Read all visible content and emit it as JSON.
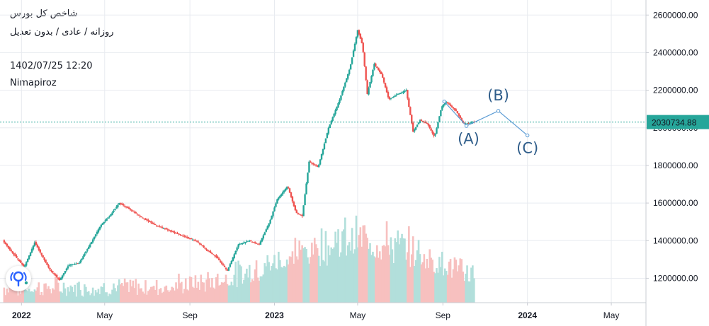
{
  "header": {
    "title": "شاخص کل بورس",
    "subtitle": "روزانه / عادی / بدون تعدیل",
    "datetime": "1402/07/25 12:20",
    "author": "Nimapiroz"
  },
  "colors": {
    "up": "#26a69a",
    "down": "#ef5350",
    "volume_up": "#b2dfdb",
    "volume_down": "#f7c0bf",
    "price_line": "#26a69a",
    "wave": "#2f5d8a",
    "grid": "#e8ebf0"
  },
  "logo": {
    "icon": "tradingview-logo-icon"
  },
  "chart_data": {
    "type": "candlestick",
    "y_ticks": [
      "2600000.00",
      "2400000.00",
      "2200000.00",
      "2000000.00",
      "1800000.00",
      "1600000.00",
      "1400000.00",
      "1200000.00"
    ],
    "y_tick_values": [
      2600000,
      2400000,
      2200000,
      2000000,
      1800000,
      1600000,
      1400000,
      1200000
    ],
    "x_ticks": [
      {
        "label": "2022",
        "bold": true,
        "date": "2022-01-01"
      },
      {
        "label": "May",
        "bold": false,
        "date": "2022-05-01"
      },
      {
        "label": "Sep",
        "bold": false,
        "date": "2022-09-01"
      },
      {
        "label": "2023",
        "bold": true,
        "date": "2023-01-01"
      },
      {
        "label": "May",
        "bold": false,
        "date": "2023-05-01"
      },
      {
        "label": "Sep",
        "bold": false,
        "date": "2023-09-01"
      },
      {
        "label": "2024",
        "bold": true,
        "date": "2024-01-01"
      },
      {
        "label": "May",
        "bold": false,
        "date": "2024-05-01"
      }
    ],
    "ylim": [
      1070000,
      2680000
    ],
    "xlim": [
      "2021-12-01",
      "2024-06-20"
    ],
    "grid": true,
    "current_price": {
      "label": "2030734.88",
      "value": 2030734.88
    },
    "price_path": [
      [
        "2021-12-05",
        1400000
      ],
      [
        "2021-12-20",
        1330000
      ],
      [
        "2022-01-05",
        1260000
      ],
      [
        "2022-01-20",
        1390000
      ],
      [
        "2022-02-10",
        1250000
      ],
      [
        "2022-02-25",
        1190000
      ],
      [
        "2022-03-10",
        1270000
      ],
      [
        "2022-03-25",
        1280000
      ],
      [
        "2022-04-10",
        1380000
      ],
      [
        "2022-04-25",
        1480000
      ],
      [
        "2022-05-10",
        1540000
      ],
      [
        "2022-05-22",
        1600000
      ],
      [
        "2022-06-05",
        1570000
      ],
      [
        "2022-06-25",
        1520000
      ],
      [
        "2022-07-15",
        1480000
      ],
      [
        "2022-08-05",
        1450000
      ],
      [
        "2022-08-25",
        1420000
      ],
      [
        "2022-09-10",
        1400000
      ],
      [
        "2022-09-25",
        1350000
      ],
      [
        "2022-10-10",
        1310000
      ],
      [
        "2022-10-25",
        1240000
      ],
      [
        "2022-11-10",
        1380000
      ],
      [
        "2022-11-25",
        1400000
      ],
      [
        "2022-12-10",
        1380000
      ],
      [
        "2022-12-25",
        1500000
      ],
      [
        "2023-01-05",
        1620000
      ],
      [
        "2023-01-20",
        1690000
      ],
      [
        "2023-02-01",
        1550000
      ],
      [
        "2023-02-10",
        1530000
      ],
      [
        "2023-02-20",
        1820000
      ],
      [
        "2023-03-05",
        1790000
      ],
      [
        "2023-03-20",
        2000000
      ],
      [
        "2023-04-05",
        2150000
      ],
      [
        "2023-04-20",
        2320000
      ],
      [
        "2023-05-01",
        2520000
      ],
      [
        "2023-05-08",
        2440000
      ],
      [
        "2023-05-15",
        2180000
      ],
      [
        "2023-05-25",
        2340000
      ],
      [
        "2023-06-05",
        2280000
      ],
      [
        "2023-06-15",
        2150000
      ],
      [
        "2023-06-28",
        2180000
      ],
      [
        "2023-07-10",
        2200000
      ],
      [
        "2023-07-20",
        1980000
      ],
      [
        "2023-07-30",
        2040000
      ],
      [
        "2023-08-10",
        2020000
      ],
      [
        "2023-08-20",
        1950000
      ],
      [
        "2023-08-30",
        2110000
      ],
      [
        "2023-09-05",
        2140000
      ],
      [
        "2023-09-20",
        2090000
      ],
      [
        "2023-10-01",
        2020000
      ],
      [
        "2023-10-16",
        2030734.88
      ]
    ],
    "volume_max_date": "2023-05-01",
    "wave_path": [
      {
        "date": "2023-09-03",
        "value": 2140000
      },
      {
        "date": "2023-10-05",
        "value": 2010000
      },
      {
        "date": "2023-11-20",
        "value": 2090000
      },
      {
        "date": "2024-01-01",
        "value": 1960000
      }
    ],
    "wave_labels": [
      {
        "text": "(A)",
        "date": "2023-10-08",
        "value": 1915000
      },
      {
        "text": "(B)",
        "date": "2023-11-20",
        "value": 2145000
      },
      {
        "text": "(C)",
        "date": "2024-01-01",
        "value": 1865000
      }
    ]
  }
}
